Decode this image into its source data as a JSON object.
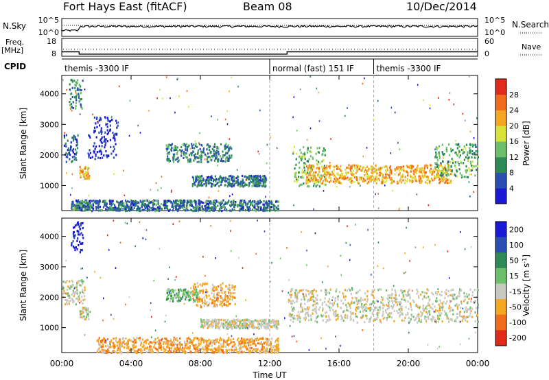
{
  "header": {
    "title": "Fort Hays East (fitACF)",
    "beam": "Beam 08",
    "date": "10/Dec/2014"
  },
  "strips": {
    "nsky_label": "N.Sky",
    "nsky_ticks": [
      "10^5",
      "10^0"
    ],
    "nsearch_label": "N.Search",
    "nsearch_ticks": [
      "10^5",
      "10^0"
    ],
    "freq_label": "Freq.",
    "freq_unit": "[MHz]",
    "freq_ticks": [
      "18",
      "8"
    ],
    "nave_label": "Nave",
    "nave_ticks": [
      "60",
      "0"
    ],
    "cpid_label": "CPID",
    "freq_steps": [
      [
        0,
        10.5
      ],
      [
        1.0,
        10.5
      ],
      [
        1.0,
        9.2
      ],
      [
        13.0,
        9.2
      ],
      [
        13.0,
        10.5
      ],
      [
        24,
        10.5
      ]
    ],
    "cpid_segments": [
      {
        "start": 0,
        "label": "themis -3300 IF"
      },
      {
        "start": 12,
        "label": "normal (fast) 151 IF"
      },
      {
        "start": 18,
        "label": "themis -3300 IF"
      }
    ]
  },
  "chart_data": [
    {
      "type": "heatmap",
      "panel": "power",
      "ylabel": "Slant Range [km]",
      "yticks": [
        1000,
        2000,
        3000,
        4000
      ],
      "ylim": [
        180,
        4600
      ],
      "xlim": [
        0,
        24
      ],
      "colorbar_label": "Power [dB]",
      "colorbar_ticks": [
        4,
        8,
        12,
        16,
        20,
        24,
        28
      ],
      "colorbar_range": [
        0,
        32
      ],
      "colormap": [
        "#1a1ad6",
        "#2a4fb0",
        "#2e8b57",
        "#6dc06a",
        "#d7e33a",
        "#f5a623",
        "#f26d1b",
        "#e02a1a"
      ],
      "echo_regions": [
        {
          "t0": 0.4,
          "t1": 1.2,
          "r0": 3500,
          "r1": 4500,
          "level": 10
        },
        {
          "t0": 0.1,
          "t1": 0.9,
          "r0": 1800,
          "r1": 2700,
          "level": 6
        },
        {
          "t0": 1.0,
          "t1": 1.6,
          "r0": 1250,
          "r1": 1650,
          "level": 22
        },
        {
          "t0": 1.5,
          "t1": 3.2,
          "r0": 1900,
          "r1": 3300,
          "level": 3
        },
        {
          "t0": 6.0,
          "t1": 9.8,
          "r0": 1800,
          "r1": 2400,
          "level": 9
        },
        {
          "t0": 7.5,
          "t1": 11.8,
          "r0": 1000,
          "r1": 1350,
          "level": 8
        },
        {
          "t0": 0.5,
          "t1": 12.5,
          "r0": 200,
          "r1": 550,
          "level": 8
        },
        {
          "t0": 13.3,
          "t1": 15.2,
          "r0": 1000,
          "r1": 2300,
          "level": 14
        },
        {
          "t0": 14.0,
          "t1": 22.5,
          "r0": 1100,
          "r1": 1700,
          "level": 22
        },
        {
          "t0": 21.5,
          "t1": 24.0,
          "r0": 1300,
          "r1": 2400,
          "level": 12
        }
      ]
    },
    {
      "type": "heatmap",
      "panel": "velocity",
      "ylabel": "Slant Range [km]",
      "yticks": [
        1000,
        2000,
        3000,
        4000
      ],
      "ylim": [
        180,
        4600
      ],
      "xlim": [
        0,
        24
      ],
      "colorbar_label": "Velocity [m s",
      "colorbar_label_sup": "-1",
      "colorbar_label_end": "]",
      "colorbar_ticks": [
        200,
        100,
        50,
        15,
        -15,
        -50,
        -100,
        -200
      ],
      "colormap": [
        "#1a1ad6",
        "#2a4fb0",
        "#2e8b57",
        "#6dc06a",
        "#c8c8c0",
        "#f5a623",
        "#f26d1b",
        "#e02a1a"
      ],
      "echo_regions": [
        {
          "t0": 0.0,
          "t1": 1.3,
          "r0": 1800,
          "r1": 2600,
          "level": 4
        },
        {
          "t0": 0.5,
          "t1": 1.2,
          "r0": 3500,
          "r1": 4500,
          "level": 0
        },
        {
          "t0": 1.0,
          "t1": 1.6,
          "r0": 1300,
          "r1": 1700,
          "level": 4
        },
        {
          "t0": 6.0,
          "t1": 8.0,
          "r0": 1900,
          "r1": 2300,
          "level": 3
        },
        {
          "t0": 7.5,
          "t1": 10.0,
          "r0": 1700,
          "r1": 2500,
          "level": 5
        },
        {
          "t0": 8.0,
          "t1": 12.5,
          "r0": 1000,
          "r1": 1300,
          "level": 4
        },
        {
          "t0": 2.0,
          "t1": 12.5,
          "r0": 200,
          "r1": 700,
          "level": 5
        },
        {
          "t0": 13.0,
          "t1": 24.0,
          "r0": 1200,
          "r1": 2300,
          "level": 4
        }
      ]
    }
  ],
  "xaxis": {
    "label": "Time UT",
    "ticks": [
      "00:00",
      "04:00",
      "08:00",
      "12:00",
      "16:00",
      "20:00",
      "00:00"
    ]
  }
}
